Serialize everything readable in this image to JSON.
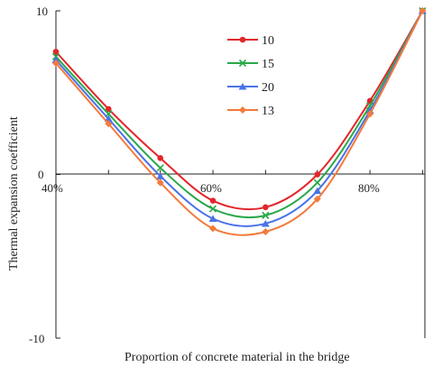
{
  "chart_data": {
    "type": "line",
    "xlabel": "Proportion of concrete material in the bridge",
    "ylabel": "Thermal expansion coefficient",
    "xlim": [
      40,
      87
    ],
    "ylim": [
      -10,
      10
    ],
    "x_tick_labels": [
      "40%",
      "60%",
      "80%"
    ],
    "x_tick_values": [
      40,
      60,
      80
    ],
    "y_tick_labels": [
      "10",
      "0",
      "-10"
    ],
    "y_tick_values": [
      10,
      0,
      -10
    ],
    "x": [
      40,
      46.7,
      53.3,
      60,
      66.7,
      73.3,
      80,
      86.7
    ],
    "legend_position": "upper-center",
    "grid": false,
    "series": [
      {
        "name": "10",
        "color": "#e3262b",
        "marker": "circle",
        "values": [
          7.5,
          4.0,
          1.0,
          -1.6,
          -2.0,
          0.0,
          4.5,
          10.0
        ]
      },
      {
        "name": "15",
        "color": "#2aa84a",
        "marker": "x",
        "values": [
          7.2,
          3.7,
          0.4,
          -2.1,
          -2.5,
          -0.5,
          4.2,
          10.0
        ]
      },
      {
        "name": "20",
        "color": "#4a72e8",
        "marker": "triangle",
        "values": [
          7.0,
          3.4,
          -0.1,
          -2.7,
          -3.0,
          -1.0,
          3.9,
          10.0
        ]
      },
      {
        "name": "13",
        "color": "#f47a3c",
        "marker": "diamond",
        "values": [
          6.8,
          3.1,
          -0.5,
          -3.3,
          -3.5,
          -1.5,
          3.7,
          10.0
        ]
      }
    ]
  }
}
